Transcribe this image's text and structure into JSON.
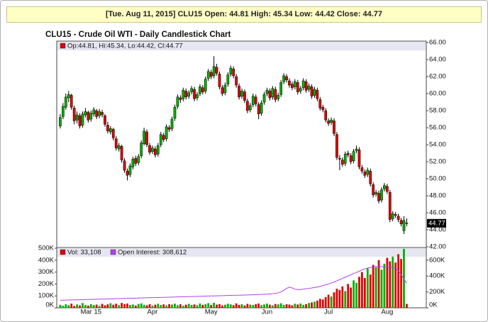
{
  "header": {
    "text": "[Tue. Aug 11, 2015] CLU15 Open: 44.81 High: 45.34 Low: 44.42 Close: 44.77"
  },
  "chart_data": {
    "type": "candlestick",
    "title": "CLU15 - Crude Oil WTI - Daily Candlestick Chart",
    "price_legend": "Op:44.81, Hi:45.34, Lo:44.42, Cl:44.77",
    "volume_legend": "Vol: 33,108",
    "oi_legend": "Open Interest: 308,612",
    "up_color": "#00b000",
    "down_color": "#e00000",
    "oi_color": "#b040f0",
    "volume_legend_color": "#e00000",
    "xlim": [
      -1,
      131
    ],
    "xticks": [
      {
        "value": 11,
        "label": "Mar 15"
      },
      {
        "value": 33,
        "label": "Apr"
      },
      {
        "value": 54,
        "label": "May"
      },
      {
        "value": 74,
        "label": "Jun"
      },
      {
        "value": 96,
        "label": "Jul"
      },
      {
        "value": 117,
        "label": "Aug"
      }
    ],
    "ylim": [
      42,
      66
    ],
    "yticks": [
      {
        "value": 42,
        "label": "42.00"
      },
      {
        "value": 44,
        "label": "44.00"
      },
      {
        "value": 46,
        "label": "46.00"
      },
      {
        "value": 48,
        "label": "48.00"
      },
      {
        "value": 50,
        "label": "50.00"
      },
      {
        "value": 52,
        "label": "52.00"
      },
      {
        "value": 54,
        "label": "54.00"
      },
      {
        "value": 56,
        "label": "56.00"
      },
      {
        "value": 58,
        "label": "58.00"
      },
      {
        "value": 60,
        "label": "60.00"
      },
      {
        "value": 62,
        "label": "62.00"
      },
      {
        "value": 64,
        "label": "64.00"
      },
      {
        "value": 66,
        "label": "66.00"
      }
    ],
    "volume_ylim": [
      0,
      500000
    ],
    "volume_yticks": [
      {
        "value": 0,
        "label": "0K"
      },
      {
        "value": 100000,
        "label": "100K"
      },
      {
        "value": 200000,
        "label": "200K"
      },
      {
        "value": 300000,
        "label": "300K"
      },
      {
        "value": 400000,
        "label": "400K"
      },
      {
        "value": 500000,
        "label": "500K"
      }
    ],
    "y2lim": [
      0,
      750000
    ],
    "y2ticks": [
      {
        "value": 0,
        "label": "0K"
      },
      {
        "value": 200000,
        "label": "200K"
      },
      {
        "value": 400000,
        "label": "400K"
      },
      {
        "value": 600000,
        "label": "600K"
      }
    ],
    "candles": [
      [
        56.2,
        57.6,
        55.9,
        57.2
      ],
      [
        57.3,
        58.9,
        57.0,
        58.5
      ],
      [
        58.4,
        60.0,
        58.1,
        59.6
      ],
      [
        59.5,
        60.3,
        59.0,
        59.9
      ],
      [
        59.8,
        60.0,
        58.1,
        58.4
      ],
      [
        58.3,
        58.6,
        56.4,
        56.8
      ],
      [
        56.9,
        57.9,
        56.5,
        57.5
      ],
      [
        57.4,
        57.7,
        55.9,
        56.2
      ],
      [
        56.3,
        57.9,
        56.0,
        57.6
      ],
      [
        57.5,
        58.3,
        57.2,
        57.9
      ],
      [
        57.8,
        58.0,
        56.6,
        56.9
      ],
      [
        57.0,
        58.0,
        56.7,
        57.7
      ],
      [
        57.6,
        58.4,
        57.3,
        58.1
      ],
      [
        58.0,
        58.2,
        57.0,
        57.3
      ],
      [
        57.4,
        58.2,
        57.1,
        57.9
      ],
      [
        57.8,
        58.1,
        57.2,
        57.5
      ],
      [
        57.4,
        57.6,
        56.1,
        56.4
      ],
      [
        56.3,
        56.7,
        55.3,
        55.6
      ],
      [
        55.5,
        56.2,
        55.2,
        55.9
      ],
      [
        55.8,
        56.0,
        54.5,
        54.8
      ],
      [
        54.7,
        55.0,
        53.3,
        53.6
      ],
      [
        53.5,
        54.2,
        53.2,
        53.9
      ],
      [
        53.8,
        54.0,
        51.9,
        52.2
      ],
      [
        52.1,
        52.4,
        50.7,
        51.0
      ],
      [
        50.9,
        51.2,
        49.8,
        50.4
      ],
      [
        50.5,
        51.8,
        50.2,
        51.5
      ],
      [
        51.4,
        52.6,
        51.1,
        52.3
      ],
      [
        52.4,
        52.7,
        51.5,
        51.8
      ],
      [
        51.9,
        52.9,
        51.6,
        52.6
      ],
      [
        52.7,
        54.5,
        52.4,
        54.2
      ],
      [
        54.1,
        56.0,
        53.9,
        55.6
      ],
      [
        55.5,
        55.8,
        53.7,
        54.0
      ],
      [
        53.9,
        54.2,
        52.8,
        53.1
      ],
      [
        53.2,
        53.9,
        52.9,
        53.6
      ],
      [
        53.5,
        53.8,
        52.5,
        52.8
      ],
      [
        52.9,
        54.2,
        52.6,
        53.9
      ],
      [
        54.0,
        55.5,
        53.7,
        55.2
      ],
      [
        55.1,
        55.4,
        54.3,
        54.6
      ],
      [
        54.7,
        56.4,
        54.4,
        56.1
      ],
      [
        56.0,
        56.3,
        55.5,
        55.8
      ],
      [
        55.9,
        57.3,
        55.6,
        57.0
      ],
      [
        57.1,
        58.7,
        56.8,
        58.4
      ],
      [
        58.5,
        59.9,
        58.2,
        59.6
      ],
      [
        59.5,
        59.8,
        58.9,
        59.3
      ],
      [
        59.4,
        60.7,
        59.1,
        60.4
      ],
      [
        60.3,
        60.6,
        59.3,
        59.6
      ],
      [
        59.7,
        60.4,
        59.4,
        60.1
      ],
      [
        60.2,
        60.9,
        59.9,
        60.6
      ],
      [
        60.5,
        60.8,
        59.1,
        59.4
      ],
      [
        59.5,
        60.2,
        59.2,
        59.9
      ],
      [
        60.0,
        61.1,
        59.7,
        60.8
      ],
      [
        60.7,
        61.0,
        59.9,
        60.2
      ],
      [
        60.3,
        62.0,
        60.0,
        61.7
      ],
      [
        61.8,
        62.9,
        61.5,
        62.6
      ],
      [
        62.5,
        62.8,
        61.7,
        62.0
      ],
      [
        62.1,
        64.4,
        61.8,
        63.2
      ],
      [
        63.1,
        63.5,
        62.1,
        62.4
      ],
      [
        62.3,
        62.6,
        60.5,
        60.8
      ],
      [
        60.7,
        61.0,
        59.7,
        60.0
      ],
      [
        60.1,
        61.3,
        59.8,
        61.0
      ],
      [
        61.1,
        62.5,
        60.8,
        62.2
      ],
      [
        62.3,
        63.3,
        62.0,
        63.0
      ],
      [
        62.9,
        63.2,
        61.8,
        62.1
      ],
      [
        62.0,
        62.3,
        60.7,
        61.0
      ],
      [
        60.9,
        61.2,
        59.3,
        59.6
      ],
      [
        59.7,
        60.6,
        59.4,
        60.3
      ],
      [
        60.2,
        60.5,
        58.9,
        59.2
      ],
      [
        59.1,
        59.4,
        57.7,
        58.0
      ],
      [
        58.1,
        58.9,
        57.8,
        58.6
      ],
      [
        58.7,
        60.0,
        58.4,
        59.7
      ],
      [
        59.6,
        59.9,
        58.5,
        58.8
      ],
      [
        58.7,
        59.0,
        57.0,
        57.6
      ],
      [
        57.7,
        59.2,
        57.4,
        58.9
      ],
      [
        59.0,
        60.2,
        58.7,
        59.9
      ],
      [
        60.0,
        60.7,
        59.7,
        60.4
      ],
      [
        60.3,
        60.6,
        59.2,
        59.5
      ],
      [
        59.6,
        60.9,
        59.3,
        60.6
      ],
      [
        60.5,
        60.8,
        59.0,
        59.3
      ],
      [
        59.4,
        60.1,
        59.1,
        59.8
      ],
      [
        59.9,
        61.6,
        59.6,
        61.3
      ],
      [
        61.4,
        62.4,
        61.1,
        62.1
      ],
      [
        62.0,
        62.3,
        61.3,
        61.6
      ],
      [
        61.5,
        61.8,
        60.7,
        61.0
      ],
      [
        61.1,
        61.4,
        60.4,
        60.7
      ],
      [
        60.8,
        61.7,
        60.5,
        61.4
      ],
      [
        61.3,
        61.6,
        59.9,
        60.2
      ],
      [
        60.3,
        60.9,
        60.0,
        60.6
      ],
      [
        60.7,
        61.8,
        60.4,
        61.5
      ],
      [
        61.4,
        61.7,
        60.1,
        60.4
      ],
      [
        60.5,
        61.2,
        60.2,
        60.9
      ],
      [
        60.8,
        61.1,
        59.4,
        59.7
      ],
      [
        59.8,
        60.8,
        59.5,
        60.5
      ],
      [
        60.4,
        60.7,
        59.1,
        59.4
      ],
      [
        59.3,
        59.6,
        58.0,
        58.3
      ],
      [
        58.4,
        58.7,
        57.8,
        58.1
      ],
      [
        58.0,
        58.3,
        56.6,
        56.9
      ],
      [
        56.8,
        57.1,
        56.2,
        56.5
      ],
      [
        56.6,
        57.2,
        56.3,
        56.9
      ],
      [
        56.8,
        57.1,
        55.0,
        55.3
      ],
      [
        55.2,
        55.5,
        52.2,
        52.5
      ],
      [
        52.4,
        52.8,
        51.0,
        52.3
      ],
      [
        52.2,
        52.5,
        51.4,
        51.7
      ],
      [
        51.8,
        53.2,
        51.5,
        52.9
      ],
      [
        53.0,
        53.3,
        52.5,
        52.8
      ],
      [
        52.7,
        53.0,
        51.7,
        52.0
      ],
      [
        52.1,
        53.5,
        51.8,
        53.2
      ],
      [
        53.3,
        53.9,
        53.0,
        53.5
      ],
      [
        53.4,
        53.7,
        51.1,
        51.4
      ],
      [
        51.3,
        51.6,
        50.6,
        50.9
      ],
      [
        50.8,
        51.1,
        50.1,
        50.4
      ],
      [
        50.5,
        51.3,
        50.2,
        51.0
      ],
      [
        50.9,
        51.2,
        49.1,
        49.4
      ],
      [
        49.3,
        49.6,
        47.8,
        48.1
      ],
      [
        48.2,
        48.7,
        47.9,
        48.4
      ],
      [
        48.3,
        48.6,
        47.1,
        47.4
      ],
      [
        47.5,
        49.0,
        47.2,
        48.7
      ],
      [
        48.8,
        49.5,
        48.5,
        49.2
      ],
      [
        49.1,
        49.4,
        48.2,
        48.5
      ],
      [
        48.4,
        48.7,
        44.9,
        45.2
      ],
      [
        45.3,
        46.2,
        45.0,
        45.9
      ],
      [
        45.8,
        46.1,
        45.4,
        45.7
      ],
      [
        45.6,
        45.9,
        44.9,
        45.2
      ],
      [
        45.1,
        45.4,
        44.4,
        44.7
      ],
      [
        43.9,
        45.6,
        43.5,
        45.1
      ],
      [
        44.81,
        45.34,
        44.42,
        44.77
      ]
    ],
    "volume": [
      25000,
      18000,
      30000,
      22000,
      35000,
      15000,
      28000,
      20000,
      40000,
      24000,
      19000,
      31000,
      23000,
      27000,
      16000,
      33000,
      21000,
      29000,
      38000,
      26000,
      34000,
      22000,
      41000,
      30000,
      36000,
      24000,
      28000,
      19000,
      32000,
      37000,
      25000,
      21000,
      30000,
      18000,
      26000,
      34000,
      23000,
      29000,
      20000,
      31000,
      27000,
      35000,
      22000,
      30000,
      17000,
      26000,
      33000,
      24000,
      28000,
      21000,
      36000,
      25000,
      30000,
      39000,
      23000,
      42000,
      27000,
      31000,
      20000,
      26000,
      34000,
      29000,
      22000,
      37000,
      25000,
      30000,
      19000,
      33000,
      27000,
      24000,
      31000,
      36000,
      22000,
      28000,
      35000,
      26000,
      20000,
      32000,
      29000,
      38000,
      24000,
      30000,
      27000,
      21000,
      34000,
      28000,
      36000,
      25000,
      31000,
      40000,
      45000,
      52000,
      60000,
      75000,
      70000,
      90000,
      110000,
      95000,
      130000,
      160000,
      150000,
      180000,
      140000,
      200000,
      170000,
      230000,
      210000,
      260000,
      300000,
      250000,
      330000,
      280000,
      360000,
      340000,
      400000,
      320000,
      370000,
      420000,
      390000,
      430000,
      380000,
      450000,
      410000,
      495000,
      33108
    ],
    "open_interest": [
      95000,
      96000,
      97000,
      98000,
      99000,
      100000,
      101000,
      102000,
      103000,
      104000,
      105000,
      106000,
      107000,
      108000,
      109000,
      110000,
      111000,
      112000,
      113000,
      114000,
      115000,
      116000,
      117000,
      118000,
      119000,
      120000,
      121000,
      122000,
      123000,
      124000,
      125000,
      126000,
      127000,
      128000,
      129000,
      130000,
      131000,
      132000,
      133000,
      134000,
      135000,
      136000,
      137000,
      138000,
      139000,
      140000,
      141000,
      142000,
      143000,
      144000,
      145000,
      146000,
      147000,
      148000,
      149000,
      150000,
      151000,
      152000,
      153000,
      154000,
      155000,
      156000,
      157000,
      158000,
      159000,
      160000,
      161000,
      162000,
      163000,
      164000,
      165000,
      166000,
      168000,
      170000,
      172000,
      175000,
      178000,
      182000,
      188000,
      200000,
      220000,
      245000,
      260000,
      250000,
      235000,
      228000,
      230000,
      235000,
      240000,
      245000,
      250000,
      256000,
      262000,
      270000,
      280000,
      290000,
      300000,
      312000,
      325000,
      340000,
      355000,
      370000,
      385000,
      400000,
      415000,
      430000,
      445000,
      460000,
      475000,
      490000,
      500000,
      508000,
      514000,
      518000,
      520000,
      518000,
      515000,
      512000,
      510000,
      505000,
      495000,
      470000,
      420000,
      360000,
      308612
    ]
  }
}
